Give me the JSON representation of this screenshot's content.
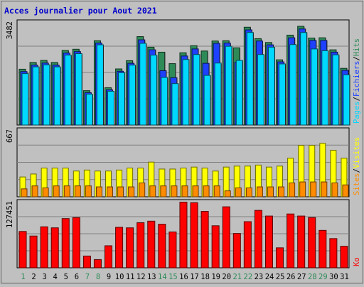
{
  "title": "Acces journalier pour Aout 2021",
  "colors": {
    "background": "#c0c0c0",
    "border": "#606060",
    "title": "#0000cc",
    "hits": "#2e8b57",
    "fichiers": "#1e40ff",
    "pages": "#00d8ff",
    "visites": "#ffff00",
    "sites": "#ff8c00",
    "ko": "#ff0000",
    "day_weekday": "#000000",
    "day_weekend": "#2e8b57"
  },
  "chart_data": [
    {
      "type": "bar",
      "panel": "top",
      "y_max_label": "3482",
      "ylim": [
        0,
        3482
      ],
      "legend": [
        "Pages",
        "Fichiers",
        "Hits"
      ],
      "x": [
        "1",
        "2",
        "3",
        "4",
        "5",
        "6",
        "7",
        "8",
        "9",
        "10",
        "11",
        "12",
        "13",
        "14",
        "15",
        "16",
        "17",
        "18",
        "19",
        "20",
        "21",
        "22",
        "23",
        "24",
        "25",
        "26",
        "27",
        "28",
        "29",
        "30",
        "31"
      ],
      "weekend_days": [
        "1",
        "7",
        "8",
        "14",
        "15",
        "21",
        "22",
        "28",
        "29"
      ],
      "series": [
        {
          "name": "Hits",
          "values": [
            1900,
            2130,
            2200,
            2130,
            2540,
            2580,
            1170,
            2870,
            1270,
            1910,
            2190,
            3010,
            2650,
            2480,
            2090,
            2460,
            2700,
            2520,
            2860,
            2870,
            2630,
            3330,
            2940,
            2810,
            2220,
            3060,
            3360,
            2960,
            2970,
            2560,
            1930
          ]
        },
        {
          "name": "Fichiers",
          "values": [
            1820,
            2040,
            2110,
            2040,
            2450,
            2500,
            1100,
            2790,
            1200,
            1830,
            2100,
            2900,
            2560,
            1850,
            1610,
            2350,
            2590,
            2100,
            2780,
            2790,
            2140,
            3240,
            2860,
            2730,
            2150,
            2970,
            3270,
            2880,
            2880,
            2480,
            1860
          ]
        },
        {
          "name": "Pages",
          "values": [
            1750,
            1980,
            2050,
            1980,
            2380,
            2430,
            1050,
            2730,
            1150,
            1780,
            2040,
            2780,
            2380,
            1620,
            1410,
            2230,
            2400,
            1690,
            2110,
            2680,
            2200,
            3150,
            2400,
            2650,
            2080,
            2740,
            3150,
            2590,
            2530,
            2390,
            1710
          ]
        }
      ]
    },
    {
      "type": "bar",
      "panel": "middle",
      "y_max_label": "667",
      "ylim": [
        0,
        667
      ],
      "legend": [
        "Sites",
        "Visites"
      ],
      "x": [
        "1",
        "2",
        "3",
        "4",
        "5",
        "6",
        "7",
        "8",
        "9",
        "10",
        "11",
        "12",
        "13",
        "14",
        "15",
        "16",
        "17",
        "18",
        "19",
        "20",
        "21",
        "22",
        "23",
        "24",
        "25",
        "26",
        "27",
        "28",
        "29",
        "30",
        "31"
      ],
      "series": [
        {
          "name": "Visites",
          "values": [
            200,
            230,
            290,
            290,
            290,
            260,
            270,
            260,
            260,
            270,
            290,
            290,
            350,
            280,
            280,
            290,
            300,
            290,
            260,
            300,
            310,
            310,
            320,
            300,
            310,
            390,
            520,
            520,
            540,
            470,
            390
          ]
        },
        {
          "name": "Sites",
          "values": [
            80,
            110,
            90,
            110,
            110,
            110,
            110,
            100,
            100,
            100,
            100,
            140,
            110,
            110,
            110,
            110,
            110,
            110,
            110,
            60,
            90,
            90,
            100,
            100,
            100,
            140,
            150,
            150,
            150,
            140,
            120
          ]
        }
      ]
    },
    {
      "type": "bar",
      "panel": "bottom",
      "y_max_label": "127451",
      "ylim": [
        0,
        127451
      ],
      "legend": [
        "Ko"
      ],
      "x": [
        "1",
        "2",
        "3",
        "4",
        "5",
        "6",
        "7",
        "8",
        "9",
        "10",
        "11",
        "12",
        "13",
        "14",
        "15",
        "16",
        "17",
        "18",
        "19",
        "20",
        "21",
        "22",
        "23",
        "24",
        "25",
        "26",
        "27",
        "28",
        "29",
        "30",
        "31"
      ],
      "series": [
        {
          "name": "Ko",
          "values": [
            70900,
            62000,
            80000,
            78000,
            96000,
            98000,
            23000,
            16000,
            43000,
            79000,
            78000,
            88000,
            91000,
            85000,
            70000,
            128000,
            127000,
            110000,
            82000,
            119000,
            67000,
            90000,
            112000,
            101000,
            39000,
            105000,
            101000,
            98000,
            73000,
            57000,
            42000
          ]
        }
      ]
    }
  ]
}
